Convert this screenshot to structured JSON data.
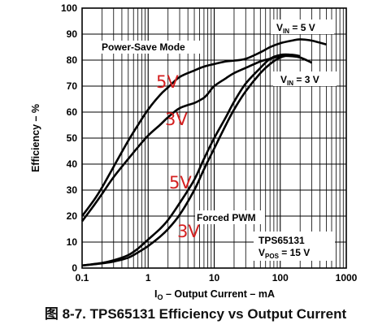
{
  "chart_data": {
    "type": "line",
    "caption": "图 8-7. TPS65131 Efficiency vs Output Current",
    "xlabel": "I",
    "xlabel_sub": "O",
    "xlabel_rest": " – Output Current – mA",
    "ylabel": "Efficiency – %",
    "x_scale": "log",
    "xlim": [
      0.1,
      1000
    ],
    "ylim": [
      0,
      100
    ],
    "x_ticks": [
      0.1,
      1,
      10,
      100,
      1000
    ],
    "x_tick_labels": [
      "0.1",
      "1",
      "10",
      "100",
      "1000"
    ],
    "y_ticks": [
      0,
      10,
      20,
      30,
      40,
      50,
      60,
      70,
      80,
      90,
      100
    ],
    "y_tick_labels": [
      "0",
      "10",
      "20",
      "30",
      "40",
      "50",
      "60",
      "70",
      "80",
      "90",
      "100"
    ],
    "grid": true,
    "series": [
      {
        "x": [
          0.1,
          0.15,
          0.2,
          0.3,
          0.5,
          0.7,
          1,
          1.5,
          2,
          3,
          5,
          7,
          10,
          15,
          20,
          30,
          50,
          70,
          100,
          150,
          200,
          300,
          500
        ],
        "y": [
          20,
          26,
          31,
          39,
          49,
          55,
          61,
          66.5,
          69.5,
          73.5,
          76,
          77.5,
          78.5,
          79.5,
          79.8,
          80.5,
          83,
          85,
          86.5,
          87.5,
          88,
          87.5,
          86
        ]
      },
      {
        "x": [
          0.1,
          0.15,
          0.2,
          0.3,
          0.5,
          0.7,
          1,
          1.5,
          2,
          3,
          5,
          6,
          7,
          8,
          10,
          15,
          20,
          30,
          50,
          70,
          100,
          150,
          200,
          300
        ],
        "y": [
          18,
          24,
          28.5,
          35,
          42,
          46.5,
          51,
          55,
          58,
          61.5,
          63.5,
          64.5,
          65.5,
          67,
          70,
          73,
          75,
          77,
          79.5,
          80.5,
          81.5,
          81.5,
          81,
          79
        ]
      },
      {
        "x": [
          0.1,
          0.2,
          0.3,
          0.5,
          0.7,
          1,
          1.5,
          2,
          3,
          5,
          7,
          10,
          15,
          20,
          30,
          50,
          70,
          100,
          150,
          200,
          250
        ],
        "y": [
          1,
          2,
          3,
          5,
          7.5,
          11,
          15,
          18.5,
          25,
          34,
          42,
          50,
          58,
          64,
          71,
          77,
          80.5,
          82,
          82,
          81,
          80
        ]
      },
      {
        "x": [
          0.1,
          0.2,
          0.3,
          0.5,
          0.7,
          1,
          1.5,
          2,
          3,
          5,
          7,
          10,
          15,
          20,
          30,
          50,
          70,
          100,
          150,
          200
        ],
        "y": [
          1,
          1.8,
          2.5,
          4,
          6,
          8.5,
          12,
          15,
          20.5,
          30,
          38,
          46,
          55,
          61,
          68,
          75,
          78.5,
          81,
          82,
          81.5
        ]
      }
    ],
    "annotations": {
      "vin5_main": "V",
      "vin5_sub": "IN",
      "vin5_rest": " = 5 V",
      "vin3_main": "V",
      "vin3_sub": "IN",
      "vin3_rest": " = 3 V",
      "power_save": "Power-Save Mode",
      "forced_pwm": "Forced PWM",
      "part": "TPS65131",
      "vpos_main": "V",
      "vpos_sub": "POS",
      "vpos_rest": " = 15 V",
      "hand_5v_top": "5V",
      "hand_3v_top": "3V",
      "hand_5v_bottom": "5V",
      "hand_3v_bottom": "3V"
    }
  }
}
